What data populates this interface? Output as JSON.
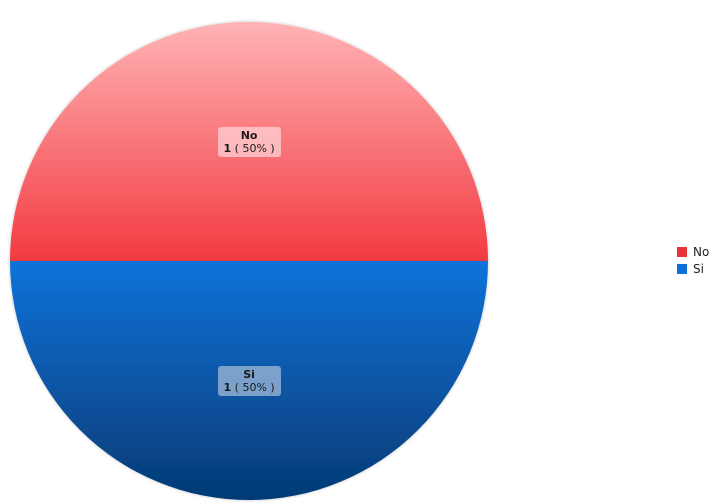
{
  "chart_data": {
    "type": "pie",
    "title": "",
    "slices": [
      {
        "label": "No",
        "value": 1,
        "percent_text": "50%",
        "color": "#e8333a"
      },
      {
        "label": "Si",
        "value": 1,
        "percent_text": "50%",
        "color": "#0e6fd6"
      }
    ],
    "legend_position": "right"
  }
}
